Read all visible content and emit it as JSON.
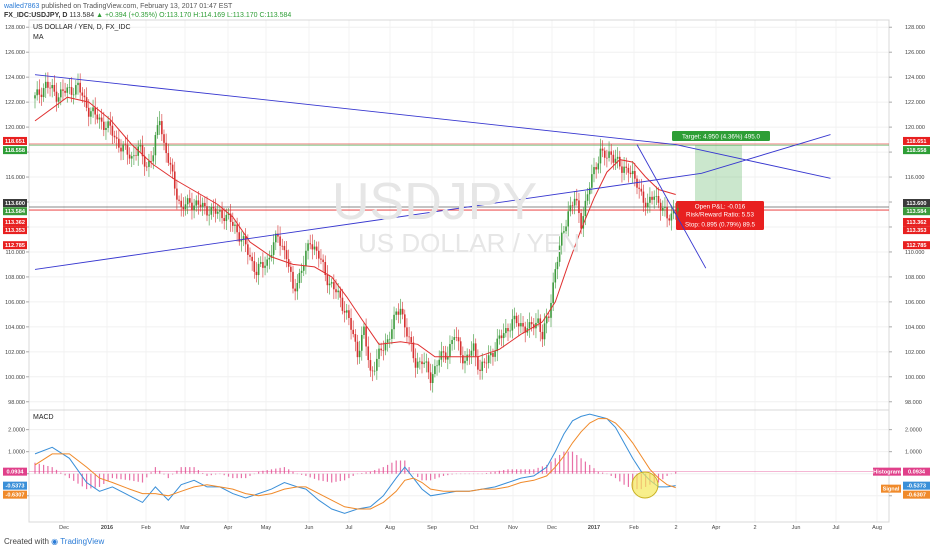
{
  "header": {
    "user": "walled7863",
    "published_text": "published on TradingView.com, February 13, 2017 01:47 EST",
    "symbol": "FX_IDC:USDJPY, D",
    "last": "113.584",
    "change": "+0.394 (+0.35%)",
    "ohlc": "O:113.170 H:114.169 L:113.170 C:113.584"
  },
  "main_panel": {
    "title": "US DOLLAR / YEN, D, FX_IDC",
    "indicator": "MA",
    "watermark_symbol": "USDJPY",
    "watermark_name": "US DOLLAR / YEN"
  },
  "macd_panel": {
    "title": "MACD"
  },
  "footer": {
    "created_with": "Created with",
    "brand": "TradingView"
  },
  "trade_box": {
    "target": "Target: 4.950 (4.36%) 495.0",
    "open_pl": "Open P&L: -0.016",
    "rr": "Risk/Reward Ratio: 5.53",
    "stop": "Stop: 0.895 (0.79%) 89.5"
  },
  "price_tags": {
    "t118651": "118.651",
    "t118558": "118.558",
    "t113600": "113.600",
    "t113584": "113.584",
    "t113362": "113.362",
    "t113353": "113.353",
    "t112785": "112.785"
  },
  "macd_tags": {
    "hist": "0.0934",
    "macd": "-0.5373",
    "signal": "-0.6307",
    "hist_label": "Histogram",
    "signal_label": "Signal"
  },
  "colors": {
    "up": "#3c9a3c",
    "down": "#d63030",
    "ma": "#e03030",
    "trend": "#3838d0",
    "target": "#2e9e36",
    "stop": "#e82020",
    "macd": "#3a8fd8",
    "signal": "#f08a2a",
    "hist": "#e0408a"
  },
  "chart_data": [
    {
      "type": "candlestick",
      "title": "US DOLLAR / YEN, D, FX_IDC",
      "x_tick_labels": [
        "Dec",
        "2016",
        "Feb",
        "Mar",
        "Apr",
        "May",
        "Jun",
        "Jul",
        "Aug",
        "Sep",
        "Oct",
        "Nov",
        "Dec",
        "2017",
        "Feb",
        "2",
        "Apr",
        "2",
        "Jun",
        "Jul",
        "Aug"
      ],
      "y_tick_labels": [
        "98.000",
        "100.000",
        "102.000",
        "104.000",
        "106.000",
        "108.000",
        "110.000",
        "112.000",
        "114.000",
        "116.000",
        "118.000",
        "120.000",
        "122.000",
        "124.000",
        "126.000",
        "128.000"
      ],
      "ylim": [
        97.5,
        128.5
      ],
      "close_path": [
        [
          0,
          122.3
        ],
        [
          5,
          123.4
        ],
        [
          10,
          122.6
        ],
        [
          15,
          122.9
        ],
        [
          20,
          123.2
        ],
        [
          25,
          121.4
        ],
        [
          30,
          120.6
        ],
        [
          35,
          119.8
        ],
        [
          40,
          118.4
        ],
        [
          45,
          117.6
        ],
        [
          48,
          118.3
        ],
        [
          52,
          116.9
        ],
        [
          55,
          117.8
        ],
        [
          58,
          120.9
        ],
        [
          60,
          118.6
        ],
        [
          64,
          116.0
        ],
        [
          68,
          113.4
        ],
        [
          72,
          114.0
        ],
        [
          78,
          113.6
        ],
        [
          83,
          113.2
        ],
        [
          88,
          113.0
        ],
        [
          93,
          112.0
        ],
        [
          98,
          110.4
        ],
        [
          103,
          108.4
        ],
        [
          108,
          109.3
        ],
        [
          113,
          111.3
        ],
        [
          117,
          109.7
        ],
        [
          120,
          106.9
        ],
        [
          125,
          109.0
        ],
        [
          128,
          111.0
        ],
        [
          132,
          109.6
        ],
        [
          137,
          107.5
        ],
        [
          142,
          106.3
        ],
        [
          146,
          104.5
        ],
        [
          150,
          102.0
        ],
        [
          153,
          103.6
        ],
        [
          156,
          100.3
        ],
        [
          160,
          101.7
        ],
        [
          164,
          103.0
        ],
        [
          168,
          104.9
        ],
        [
          170,
          105.6
        ],
        [
          174,
          102.8
        ],
        [
          177,
          101.1
        ],
        [
          180,
          101.3
        ],
        [
          184,
          100.0
        ],
        [
          188,
          101.4
        ],
        [
          192,
          102.0
        ],
        [
          195,
          103.3
        ],
        [
          200,
          101.2
        ],
        [
          204,
          102.3
        ],
        [
          207,
          100.6
        ],
        [
          210,
          101.2
        ],
        [
          214,
          102.4
        ],
        [
          218,
          103.5
        ],
        [
          222,
          104.4
        ],
        [
          226,
          104.2
        ],
        [
          230,
          103.8
        ],
        [
          234,
          104.6
        ],
        [
          236,
          103.2
        ],
        [
          239,
          105.0
        ],
        [
          242,
          108.7
        ],
        [
          245,
          111.0
        ],
        [
          248,
          113.3
        ],
        [
          251,
          114.2
        ],
        [
          254,
          112.4
        ],
        [
          257,
          114.6
        ],
        [
          260,
          116.5
        ],
        [
          263,
          118.1
        ],
        [
          266,
          117.4
        ],
        [
          268,
          118.0
        ],
        [
          271,
          117.2
        ],
        [
          273,
          116.4
        ],
        [
          276,
          116.9
        ],
        [
          279,
          115.6
        ],
        [
          282,
          114.7
        ],
        [
          285,
          113.6
        ],
        [
          288,
          114.6
        ],
        [
          290,
          114.1
        ],
        [
          292,
          113.4
        ],
        [
          294,
          112.6
        ],
        [
          296,
          113.1
        ],
        [
          298,
          113.6
        ]
      ],
      "series": [
        {
          "name": "MA",
          "points": [
            [
              0,
              120.5
            ],
            [
              15,
              122.4
            ],
            [
              25,
              122.0
            ],
            [
              35,
              120.6
            ],
            [
              45,
              118.6
            ],
            [
              55,
              117.0
            ],
            [
              65,
              115.8
            ],
            [
              75,
              114.8
            ],
            [
              85,
              113.8
            ],
            [
              92,
              112.8
            ],
            [
              100,
              110.8
            ],
            [
              110,
              109.6
            ],
            [
              120,
              109.0
            ],
            [
              130,
              108.8
            ],
            [
              138,
              108.0
            ],
            [
              145,
              106.4
            ],
            [
              152,
              104.6
            ],
            [
              160,
              102.6
            ],
            [
              170,
              102.8
            ],
            [
              178,
              102.6
            ],
            [
              186,
              101.6
            ],
            [
              196,
              101.6
            ],
            [
              206,
              101.6
            ],
            [
              216,
              102.2
            ],
            [
              226,
              103.4
            ],
            [
              236,
              104.4
            ],
            [
              242,
              106.0
            ],
            [
              248,
              109.0
            ],
            [
              254,
              111.8
            ],
            [
              260,
              114.3
            ],
            [
              266,
              116.4
            ],
            [
              272,
              117.4
            ],
            [
              278,
              117.2
            ],
            [
              284,
              116.0
            ],
            [
              290,
              115.0
            ],
            [
              298,
              114.6
            ]
          ]
        }
      ],
      "drawings": {
        "upper_trendline": [
          [
            0,
            124.2
          ],
          [
            298,
            118.6
          ],
          [
            370,
            115.9
          ]
        ],
        "lower_trendline": [
          [
            0,
            108.6
          ],
          [
            310,
            116.3
          ],
          [
            370,
            119.4
          ]
        ],
        "short_trendline": [
          [
            280,
            118.6
          ],
          [
            312,
            108.7
          ]
        ],
        "target_price": 118.558,
        "stop_price": 112.785,
        "entry_price": 113.6
      }
    },
    {
      "type": "line",
      "title": "MACD",
      "y_tick_labels": [
        "2.0000",
        "1.0000",
        "0.0000",
        "-1.0000"
      ],
      "ylim": [
        -2.1,
        2.8
      ],
      "series": [
        {
          "name": "MACD",
          "points": [
            [
              0,
              0.9
            ],
            [
              8,
              1.2
            ],
            [
              16,
              0.7
            ],
            [
              24,
              -0.4
            ],
            [
              30,
              -0.8
            ],
            [
              36,
              -0.6
            ],
            [
              44,
              -1.0
            ],
            [
              50,
              -1.3
            ],
            [
              56,
              -0.6
            ],
            [
              62,
              -1.2
            ],
            [
              68,
              -0.5
            ],
            [
              74,
              -0.3
            ],
            [
              80,
              -0.6
            ],
            [
              86,
              -0.6
            ],
            [
              92,
              -0.9
            ],
            [
              98,
              -1.1
            ],
            [
              104,
              -0.9
            ],
            [
              110,
              -0.7
            ],
            [
              116,
              -0.4
            ],
            [
              122,
              -0.6
            ],
            [
              126,
              -0.7
            ],
            [
              132,
              -1.2
            ],
            [
              138,
              -1.6
            ],
            [
              144,
              -1.8
            ],
            [
              150,
              -1.6
            ],
            [
              156,
              -1.5
            ],
            [
              162,
              -1.0
            ],
            [
              168,
              -0.2
            ],
            [
              172,
              0.3
            ],
            [
              176,
              -0.2
            ],
            [
              180,
              -0.7
            ],
            [
              184,
              -1.0
            ],
            [
              190,
              -0.9
            ],
            [
              196,
              -0.8
            ],
            [
              202,
              -0.8
            ],
            [
              208,
              -0.7
            ],
            [
              214,
              -0.6
            ],
            [
              220,
              -0.4
            ],
            [
              226,
              -0.2
            ],
            [
              232,
              -0.1
            ],
            [
              238,
              0.3
            ],
            [
              242,
              1.0
            ],
            [
              246,
              1.8
            ],
            [
              250,
              2.4
            ],
            [
              254,
              2.6
            ],
            [
              258,
              2.7
            ],
            [
              262,
              2.6
            ],
            [
              266,
              2.5
            ],
            [
              270,
              2.1
            ],
            [
              274,
              1.4
            ],
            [
              278,
              0.7
            ],
            [
              282,
              0.1
            ],
            [
              286,
              -0.3
            ],
            [
              290,
              -0.6
            ],
            [
              294,
              -0.6
            ],
            [
              298,
              -0.54
            ]
          ]
        },
        {
          "name": "Signal",
          "points": [
            [
              0,
              0.4
            ],
            [
              8,
              0.9
            ],
            [
              16,
              0.9
            ],
            [
              24,
              0.3
            ],
            [
              30,
              -0.2
            ],
            [
              36,
              -0.4
            ],
            [
              44,
              -0.7
            ],
            [
              50,
              -0.9
            ],
            [
              56,
              -0.9
            ],
            [
              62,
              -1.0
            ],
            [
              68,
              -0.8
            ],
            [
              74,
              -0.6
            ],
            [
              80,
              -0.5
            ],
            [
              86,
              -0.6
            ],
            [
              92,
              -0.7
            ],
            [
              98,
              -0.9
            ],
            [
              104,
              -1.0
            ],
            [
              110,
              -0.9
            ],
            [
              116,
              -0.7
            ],
            [
              122,
              -0.6
            ],
            [
              126,
              -0.6
            ],
            [
              132,
              -0.9
            ],
            [
              138,
              -1.2
            ],
            [
              144,
              -1.5
            ],
            [
              150,
              -1.6
            ],
            [
              156,
              -1.6
            ],
            [
              162,
              -1.3
            ],
            [
              168,
              -0.8
            ],
            [
              172,
              -0.3
            ],
            [
              176,
              -0.2
            ],
            [
              180,
              -0.4
            ],
            [
              184,
              -0.7
            ],
            [
              190,
              -0.8
            ],
            [
              196,
              -0.8
            ],
            [
              202,
              -0.8
            ],
            [
              208,
              -0.7
            ],
            [
              214,
              -0.7
            ],
            [
              220,
              -0.6
            ],
            [
              226,
              -0.4
            ],
            [
              232,
              -0.3
            ],
            [
              238,
              -0.1
            ],
            [
              242,
              0.3
            ],
            [
              246,
              0.8
            ],
            [
              250,
              1.4
            ],
            [
              254,
              1.9
            ],
            [
              258,
              2.3
            ],
            [
              262,
              2.5
            ],
            [
              266,
              2.5
            ],
            [
              270,
              2.3
            ],
            [
              274,
              1.9
            ],
            [
              278,
              1.4
            ],
            [
              282,
              0.8
            ],
            [
              286,
              0.2
            ],
            [
              290,
              -0.2
            ],
            [
              294,
              -0.5
            ],
            [
              298,
              -0.63
            ]
          ]
        }
      ],
      "histogram_value": 0.0934,
      "macd_value": -0.5373,
      "signal_value": -0.6307
    }
  ]
}
